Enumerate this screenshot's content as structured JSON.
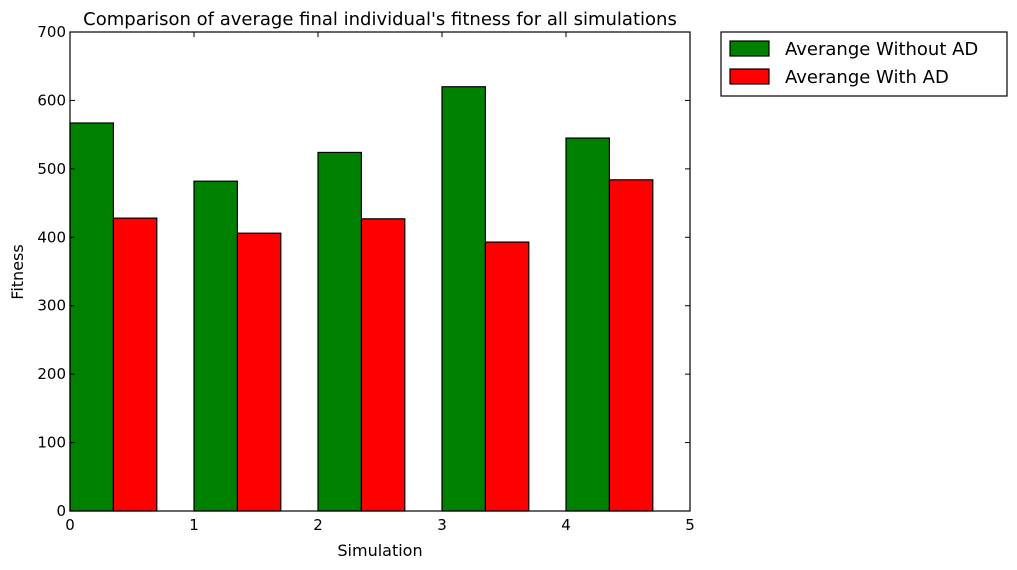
{
  "chart_data": {
    "type": "bar",
    "title": "Comparison of average final individual's fitness for all simulations",
    "xlabel": "Simulation",
    "ylabel": "Fitness",
    "xlim": [
      0,
      5
    ],
    "ylim": [
      0,
      700
    ],
    "xticks": [
      "0",
      "1",
      "2",
      "3",
      "4",
      "5"
    ],
    "yticks": [
      "0",
      "100",
      "200",
      "300",
      "400",
      "500",
      "600",
      "700"
    ],
    "categories": [
      0,
      1,
      2,
      3,
      4
    ],
    "series": [
      {
        "name": "Averange Without AD",
        "color": "#008000",
        "values": [
          567,
          482,
          524,
          620,
          545
        ]
      },
      {
        "name": "Averange With AD",
        "color": "#ff0000",
        "values": [
          428,
          406,
          427,
          393,
          484
        ]
      }
    ],
    "grid": false,
    "legend_position": "outside-top-right"
  }
}
